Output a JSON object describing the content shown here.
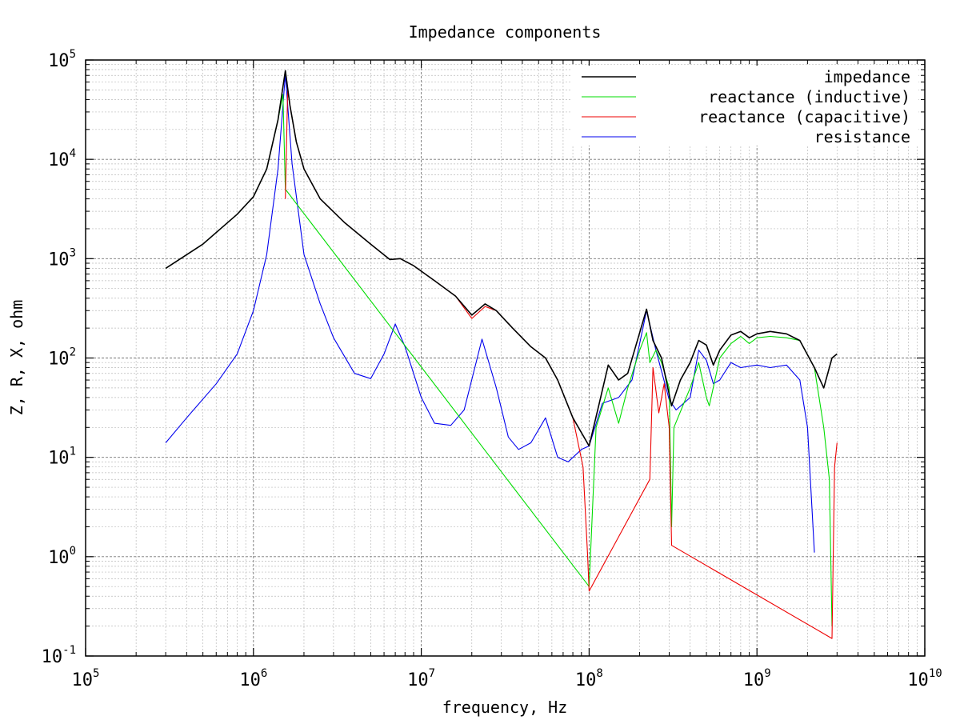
{
  "chart_data": {
    "type": "line",
    "title": "Impedance components",
    "xlabel": "frequency, Hz",
    "ylabel": "Z, R, X, ohm",
    "x_scale": "log",
    "y_scale": "log",
    "xlim": [
      100000,
      10000000000
    ],
    "ylim": [
      0.1,
      100000
    ],
    "grid": true,
    "legend_position": "top-right",
    "x_ticks": [
      {
        "base": "10",
        "exp": "5",
        "value": 100000
      },
      {
        "base": "10",
        "exp": "6",
        "value": 1000000
      },
      {
        "base": "10",
        "exp": "7",
        "value": 10000000
      },
      {
        "base": "10",
        "exp": "8",
        "value": 100000000
      },
      {
        "base": "10",
        "exp": "9",
        "value": 1000000000
      },
      {
        "base": "10",
        "exp": "10",
        "value": 10000000000
      }
    ],
    "y_ticks": [
      {
        "base": "10",
        "exp": "-1",
        "value": 0.1
      },
      {
        "base": "10",
        "exp": "0",
        "value": 1
      },
      {
        "base": "10",
        "exp": "1",
        "value": 10
      },
      {
        "base": "10",
        "exp": "2",
        "value": 100
      },
      {
        "base": "10",
        "exp": "3",
        "value": 1000
      },
      {
        "base": "10",
        "exp": "4",
        "value": 10000
      },
      {
        "base": "10",
        "exp": "5",
        "value": 100000
      }
    ],
    "series": [
      {
        "name": "impedance",
        "color": "#000000",
        "points": [
          [
            300000,
            800
          ],
          [
            500000,
            1400
          ],
          [
            800000,
            2800
          ],
          [
            1000000,
            4200
          ],
          [
            1200000,
            8000
          ],
          [
            1400000,
            25000
          ],
          [
            1550000,
            78000
          ],
          [
            1650000,
            35000
          ],
          [
            1800000,
            15000
          ],
          [
            2000000,
            8000
          ],
          [
            2500000,
            4000
          ],
          [
            3500000,
            2300
          ],
          [
            5000000,
            1400
          ],
          [
            6500000,
            980
          ],
          [
            7500000,
            1000
          ],
          [
            9000000,
            850
          ],
          [
            12000000,
            600
          ],
          [
            16000000,
            420
          ],
          [
            20000000,
            270
          ],
          [
            24000000,
            350
          ],
          [
            28000000,
            300
          ],
          [
            35000000,
            200
          ],
          [
            45000000,
            130
          ],
          [
            55000000,
            100
          ],
          [
            65000000,
            60
          ],
          [
            80000000,
            25
          ],
          [
            100000000,
            13
          ],
          [
            115000000,
            35
          ],
          [
            130000000,
            85
          ],
          [
            150000000,
            60
          ],
          [
            170000000,
            70
          ],
          [
            200000000,
            180
          ],
          [
            220000000,
            310
          ],
          [
            240000000,
            150
          ],
          [
            270000000,
            100
          ],
          [
            310000000,
            33
          ],
          [
            350000000,
            60
          ],
          [
            400000000,
            90
          ],
          [
            450000000,
            150
          ],
          [
            500000000,
            135
          ],
          [
            550000000,
            85
          ],
          [
            600000000,
            120
          ],
          [
            700000000,
            170
          ],
          [
            800000000,
            185
          ],
          [
            900000000,
            160
          ],
          [
            1000000000,
            175
          ],
          [
            1200000000,
            185
          ],
          [
            1500000000,
            175
          ],
          [
            1800000000,
            150
          ],
          [
            2200000000,
            80
          ],
          [
            2500000000,
            50
          ],
          [
            2800000000,
            100
          ],
          [
            3000000000,
            110
          ]
        ]
      },
      {
        "name": "reactance (inductive)",
        "color": "#00dd00",
        "points": [
          [
            300000,
            800
          ],
          [
            500000,
            1400
          ],
          [
            800000,
            2800
          ],
          [
            1000000,
            4200
          ],
          [
            1200000,
            8000
          ],
          [
            1400000,
            25000
          ],
          [
            1500000,
            45000
          ],
          [
            1550000,
            5000
          ],
          [
            100000000,
            0.5
          ],
          [
            110000000,
            20
          ],
          [
            130000000,
            50
          ],
          [
            150000000,
            22
          ],
          [
            170000000,
            50
          ],
          [
            200000000,
            120
          ],
          [
            220000000,
            180
          ],
          [
            230000000,
            90
          ],
          [
            250000000,
            120
          ],
          [
            270000000,
            90
          ],
          [
            300000000,
            50
          ],
          [
            310000000,
            2
          ],
          [
            320000000,
            20
          ],
          [
            400000000,
            50
          ],
          [
            450000000,
            90
          ],
          [
            500000000,
            40
          ],
          [
            520000000,
            33
          ],
          [
            600000000,
            100
          ],
          [
            700000000,
            140
          ],
          [
            800000000,
            165
          ],
          [
            900000000,
            140
          ],
          [
            1000000000,
            160
          ],
          [
            1200000000,
            165
          ],
          [
            1500000000,
            160
          ],
          [
            1800000000,
            150
          ],
          [
            2200000000,
            80
          ],
          [
            2500000000,
            20
          ],
          [
            2700000000,
            6
          ],
          [
            2800000000,
            0.2
          ]
        ]
      },
      {
        "name": "reactance (capacitive)",
        "color": "#ee0000",
        "points": [
          [
            1550000,
            4000
          ],
          [
            1600000,
            50000
          ],
          [
            1650000,
            35000
          ],
          [
            1800000,
            15000
          ],
          [
            2000000,
            8000
          ],
          [
            2500000,
            4000
          ],
          [
            3500000,
            2300
          ],
          [
            5000000,
            1400
          ],
          [
            6500000,
            980
          ],
          [
            7500000,
            1000
          ],
          [
            9000000,
            850
          ],
          [
            12000000,
            600
          ],
          [
            16000000,
            420
          ],
          [
            20000000,
            250
          ],
          [
            24000000,
            330
          ],
          [
            28000000,
            300
          ],
          [
            35000000,
            200
          ],
          [
            45000000,
            130
          ],
          [
            55000000,
            100
          ],
          [
            65000000,
            60
          ],
          [
            80000000,
            25
          ],
          [
            92000000,
            8
          ],
          [
            98000000,
            1
          ],
          [
            100000000,
            0.45
          ],
          [
            230000000,
            6
          ],
          [
            240000000,
            80
          ],
          [
            260000000,
            28
          ],
          [
            280000000,
            55
          ],
          [
            300000000,
            20
          ],
          [
            310000000,
            1.3
          ],
          [
            2800000000,
            0.15
          ],
          [
            2900000000,
            8
          ],
          [
            3000000000,
            14
          ]
        ]
      },
      {
        "name": "resistance",
        "color": "#0000ee",
        "points": [
          [
            300000,
            14
          ],
          [
            400000,
            25
          ],
          [
            600000,
            55
          ],
          [
            800000,
            110
          ],
          [
            1000000,
            300
          ],
          [
            1200000,
            1100
          ],
          [
            1400000,
            8000
          ],
          [
            1550000,
            72000
          ],
          [
            1700000,
            9000
          ],
          [
            2000000,
            1100
          ],
          [
            2500000,
            350
          ],
          [
            3000000,
            160
          ],
          [
            4000000,
            70
          ],
          [
            5000000,
            62
          ],
          [
            6000000,
            110
          ],
          [
            7000000,
            220
          ],
          [
            8000000,
            130
          ],
          [
            10000000,
            40
          ],
          [
            12000000,
            22
          ],
          [
            15000000,
            21
          ],
          [
            18000000,
            30
          ],
          [
            23000000,
            155
          ],
          [
            28000000,
            50
          ],
          [
            33000000,
            16
          ],
          [
            38000000,
            12
          ],
          [
            45000000,
            14
          ],
          [
            55000000,
            25
          ],
          [
            65000000,
            10
          ],
          [
            75000000,
            9
          ],
          [
            90000000,
            12
          ],
          [
            100000000,
            13
          ],
          [
            120000000,
            35
          ],
          [
            150000000,
            40
          ],
          [
            180000000,
            60
          ],
          [
            220000000,
            300
          ],
          [
            250000000,
            120
          ],
          [
            300000000,
            38
          ],
          [
            330000000,
            30
          ],
          [
            400000000,
            40
          ],
          [
            450000000,
            120
          ],
          [
            500000000,
            95
          ],
          [
            550000000,
            55
          ],
          [
            600000000,
            60
          ],
          [
            700000000,
            90
          ],
          [
            800000000,
            80
          ],
          [
            1000000000,
            85
          ],
          [
            1200000000,
            80
          ],
          [
            1500000000,
            85
          ],
          [
            1800000000,
            60
          ],
          [
            2000000000,
            20
          ],
          [
            2200000000,
            1.1
          ]
        ]
      }
    ]
  }
}
